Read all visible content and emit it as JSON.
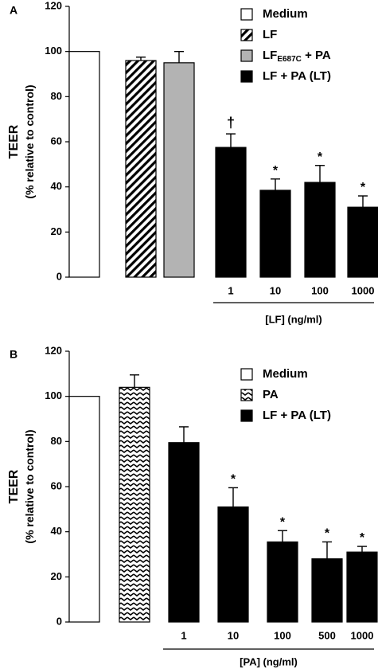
{
  "chart_data": [
    {
      "panel_label": "A",
      "type": "bar",
      "ylabel_line1": "TEER",
      "ylabel_line2": "(% relative to control)",
      "ylim": [
        0,
        120
      ],
      "yticks": [
        0,
        20,
        40,
        60,
        80,
        100,
        120
      ],
      "xlabel": "[LF] (ng/ml)",
      "bars": [
        {
          "series": "Medium",
          "value": 100,
          "error": 0,
          "label": "",
          "mark": ""
        },
        {
          "series": "LF",
          "value": 96,
          "error": 1.5,
          "label": "",
          "mark": ""
        },
        {
          "series": "LF_E687C + PA",
          "value": 95,
          "error": 5,
          "label": "",
          "mark": ""
        },
        {
          "series": "LF + PA (LT)",
          "value": 57.5,
          "error": 6,
          "label": "1",
          "mark": "†"
        },
        {
          "series": "LF + PA (LT)",
          "value": 38.5,
          "error": 5,
          "label": "10",
          "mark": "*"
        },
        {
          "series": "LF + PA (LT)",
          "value": 42,
          "error": 7.5,
          "label": "100",
          "mark": "*"
        },
        {
          "series": "LF + PA (LT)",
          "value": 31,
          "error": 5,
          "label": "1000",
          "mark": "*"
        }
      ],
      "legend": [
        {
          "name": "Medium",
          "pattern": "white",
          "text": "Medium",
          "sub": "",
          "rest": ""
        },
        {
          "name": "LF",
          "pattern": "diagonal",
          "text": "LF",
          "sub": "",
          "rest": ""
        },
        {
          "name": "LF_E687C + PA",
          "pattern": "gray",
          "text": "LF",
          "sub": "E687C",
          "rest": " + PA"
        },
        {
          "name": "LF + PA (LT)",
          "pattern": "black",
          "text": "LF + PA (LT)",
          "sub": "",
          "rest": ""
        }
      ],
      "colors": {
        "gray": "#b3b3b3",
        "black": "#000000",
        "white": "#ffffff"
      }
    },
    {
      "panel_label": "B",
      "type": "bar",
      "ylabel_line1": "TEER",
      "ylabel_line2": "(% relative to control)",
      "ylim": [
        0,
        120
      ],
      "yticks": [
        0,
        20,
        40,
        60,
        80,
        100,
        120
      ],
      "xlabel": "[PA] (ng/ml)",
      "bars": [
        {
          "series": "Medium",
          "value": 100,
          "error": 0,
          "label": "",
          "mark": ""
        },
        {
          "series": "PA",
          "value": 104,
          "error": 5.5,
          "label": "",
          "mark": ""
        },
        {
          "series": "LF + PA (LT)",
          "value": 79.5,
          "error": 7,
          "label": "1",
          "mark": ""
        },
        {
          "series": "LF + PA (LT)",
          "value": 51,
          "error": 8.5,
          "label": "10",
          "mark": "*"
        },
        {
          "series": "LF + PA (LT)",
          "value": 35.5,
          "error": 5,
          "label": "100",
          "mark": "*"
        },
        {
          "series": "LF + PA (LT)",
          "value": 28,
          "error": 7.5,
          "label": "500",
          "mark": "*"
        },
        {
          "series": "LF + PA (LT)",
          "value": 31,
          "error": 2.5,
          "label": "1000",
          "mark": "*"
        }
      ],
      "legend": [
        {
          "name": "Medium",
          "pattern": "white",
          "text": "Medium",
          "sub": "",
          "rest": ""
        },
        {
          "name": "PA",
          "pattern": "zigzag",
          "text": "PA",
          "sub": "",
          "rest": ""
        },
        {
          "name": "LF + PA (LT)",
          "pattern": "black",
          "text": "LF + PA (LT)",
          "sub": "",
          "rest": ""
        }
      ],
      "colors": {
        "gray": "#b3b3b3",
        "black": "#000000",
        "white": "#ffffff"
      }
    }
  ]
}
